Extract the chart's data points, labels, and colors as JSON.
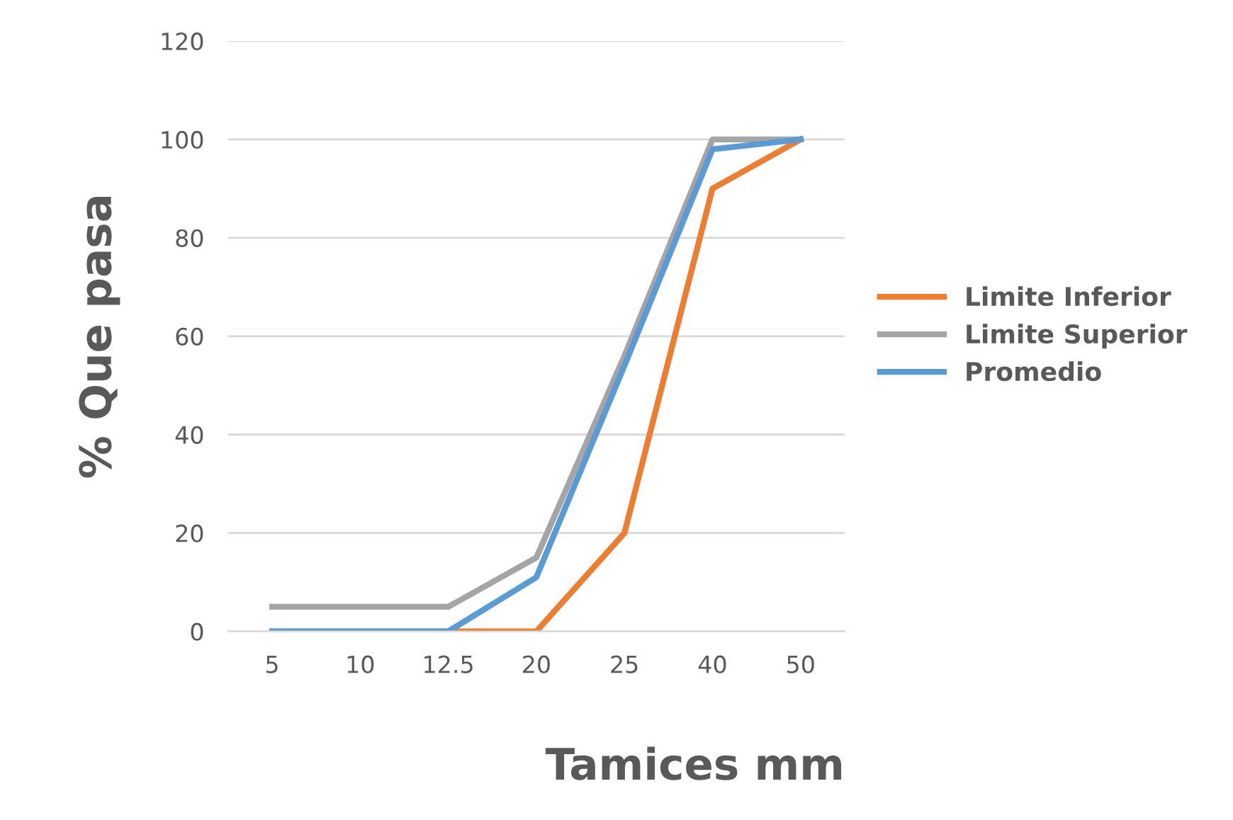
{
  "chart_data": {
    "type": "line",
    "xlabel": "Tamices mm",
    "ylabel": "% Que pasa",
    "categories": [
      "5",
      "10",
      "12.5",
      "20",
      "25",
      "40",
      "50"
    ],
    "series": [
      {
        "name": "Limite Inferior",
        "color": "#ed7d31",
        "values": [
          0,
          0,
          0,
          0,
          20,
          90,
          100
        ]
      },
      {
        "name": "Limite Superior",
        "color": "#a5a5a5",
        "values": [
          5,
          5,
          5,
          15,
          56,
          100,
          100
        ]
      },
      {
        "name": "Promedio",
        "color": "#5b9bd5",
        "values": [
          0,
          0,
          0,
          11,
          54,
          98,
          100
        ]
      }
    ],
    "ylim": [
      0,
      120
    ],
    "yticks": [
      0,
      20,
      40,
      60,
      80,
      100,
      120
    ],
    "grid": "y",
    "legend": "right",
    "marker": "none",
    "line_style": "solid"
  }
}
